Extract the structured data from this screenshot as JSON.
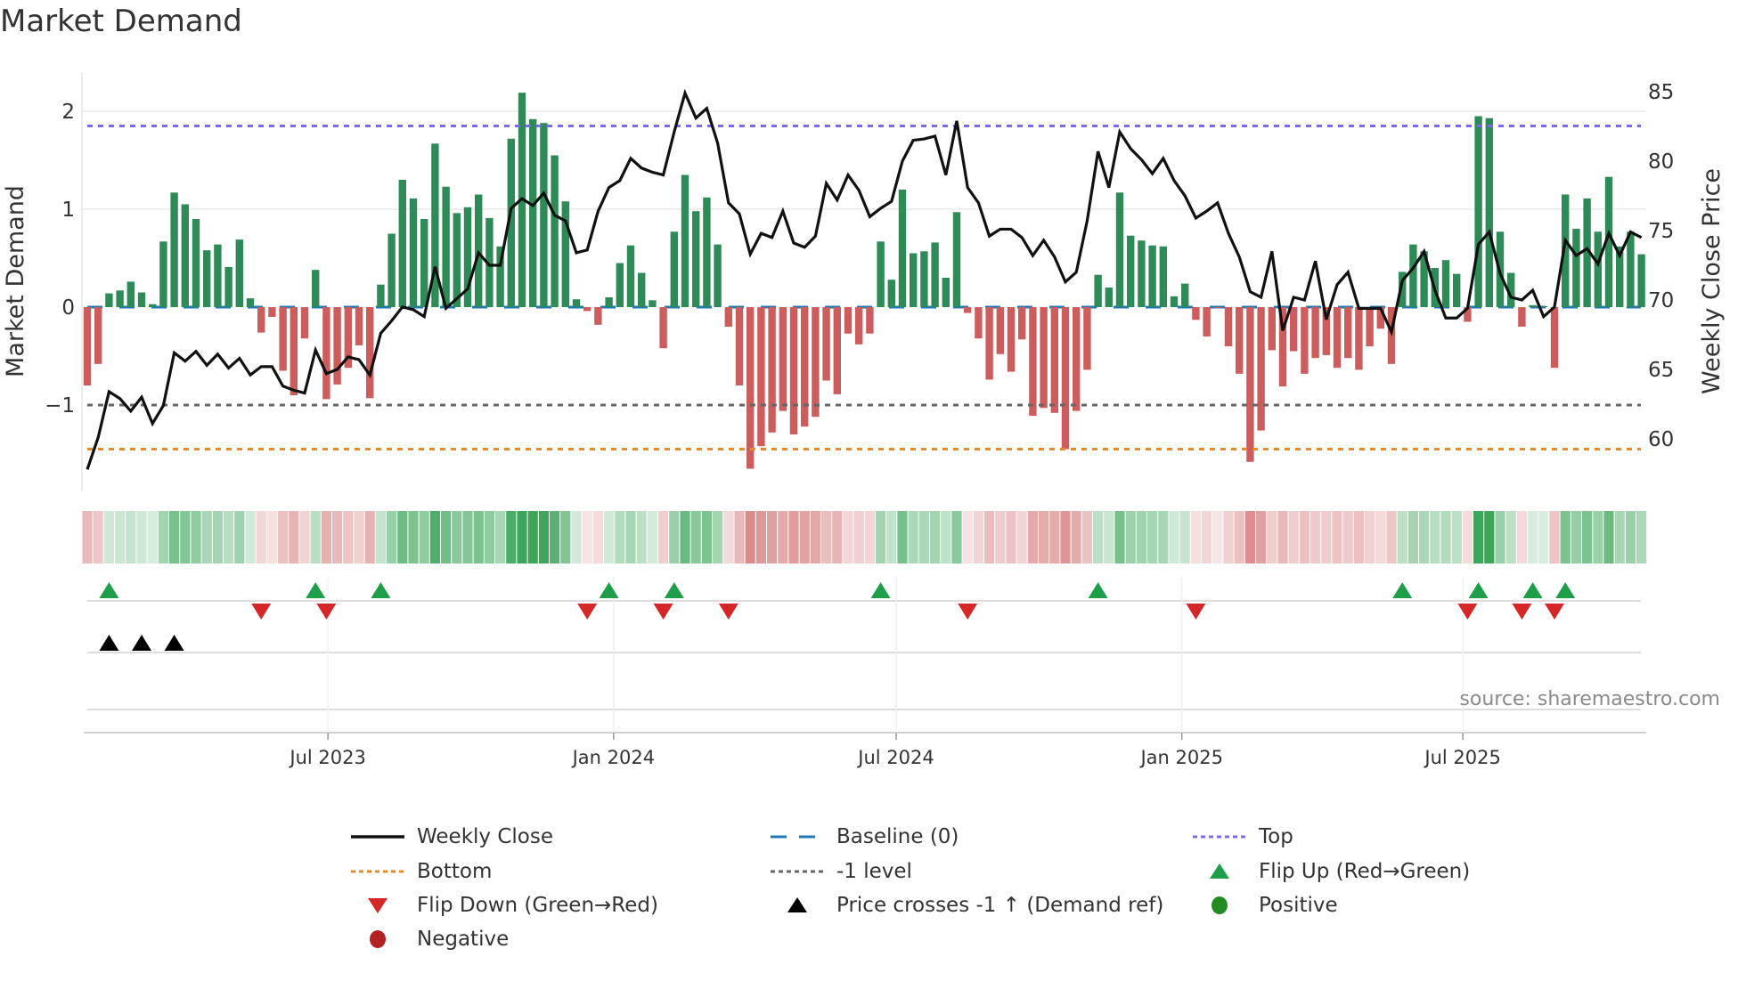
{
  "title": "Market Demand",
  "source": "source: sharemaestro.com",
  "chart_data": {
    "type": "bar",
    "title": "Market Demand",
    "ylabel": "Market Demand",
    "y2label": "Weekly Close Price",
    "ylim": [
      -1.75,
      2.4
    ],
    "y2lim": [
      56.8,
      86.3
    ],
    "yticks": [
      -1,
      0,
      1,
      2
    ],
    "y2ticks": [
      60,
      65,
      70,
      75,
      80,
      85
    ],
    "x_start": "2023-01-27",
    "x_frequency": "weekly",
    "xticks": [
      {
        "date": "2023-07-01",
        "label": "Jul 2023"
      },
      {
        "date": "2024-01-01",
        "label": "Jan 2024"
      },
      {
        "date": "2024-07-01",
        "label": "Jul 2024"
      },
      {
        "date": "2025-01-01",
        "label": "Jan 2025"
      },
      {
        "date": "2025-07-01",
        "label": "Jul 2025"
      }
    ],
    "levels": {
      "top": 1.85,
      "bottom": -1.45,
      "minus_one": -1,
      "baseline": 0
    },
    "demand": [
      -0.8,
      -0.58,
      0.14,
      0.17,
      0.26,
      0.15,
      0.03,
      0.67,
      1.17,
      1.05,
      0.9,
      0.58,
      0.64,
      0.41,
      0.69,
      0.09,
      -0.26,
      -0.1,
      -0.65,
      -0.9,
      -0.32,
      0.38,
      -0.94,
      -0.79,
      -0.62,
      -0.39,
      -0.93,
      0.23,
      0.75,
      1.3,
      1.11,
      0.9,
      1.67,
      1.23,
      0.96,
      1.02,
      1.15,
      0.91,
      0.62,
      1.72,
      2.19,
      1.92,
      1.88,
      1.55,
      1.08,
      0.08,
      -0.04,
      -0.18,
      0.1,
      0.45,
      0.63,
      0.35,
      0.07,
      -0.42,
      0.77,
      1.35,
      0.98,
      1.12,
      0.64,
      -0.2,
      -0.8,
      -1.65,
      -1.42,
      -1.28,
      -1.06,
      -1.3,
      -1.22,
      -1.12,
      -0.75,
      -0.89,
      -0.27,
      -0.38,
      -0.27,
      0.67,
      0.28,
      1.2,
      0.55,
      0.57,
      0.66,
      0.3,
      0.97,
      -0.06,
      -0.32,
      -0.74,
      -0.48,
      -0.66,
      -0.33,
      -1.11,
      -1.03,
      -1.08,
      -1.45,
      -1.06,
      -0.64,
      0.33,
      0.2,
      1.17,
      0.73,
      0.68,
      0.63,
      0.62,
      0.11,
      0.24,
      -0.13,
      -0.3,
      -0.01,
      -0.4,
      -0.68,
      -1.58,
      -1.26,
      -0.44,
      -0.81,
      -0.45,
      -0.68,
      -0.52,
      -0.49,
      -0.62,
      -0.52,
      -0.64,
      -0.4,
      -0.22,
      -0.58,
      0.36,
      0.64,
      0.57,
      0.4,
      0.48,
      0.34,
      -0.15,
      1.95,
      1.93,
      0.77,
      0.35,
      -0.2,
      0.02,
      0.01,
      -0.62,
      1.15,
      0.8,
      1.11,
      0.77,
      1.33,
      0.62,
      0.77,
      0.54
    ],
    "weekly_close": [
      57.8,
      60.1,
      63.4,
      62.9,
      62.0,
      63.0,
      61.1,
      62.4,
      66.2,
      65.6,
      66.3,
      65.3,
      66.1,
      65.1,
      65.8,
      64.6,
      65.2,
      65.2,
      63.8,
      63.5,
      63.3,
      66.4,
      64.7,
      65.0,
      65.9,
      65.7,
      64.6,
      67.6,
      68.5,
      69.5,
      69.3,
      68.8,
      72.4,
      69.4,
      70.1,
      70.8,
      73.4,
      72.5,
      72.5,
      76.6,
      77.3,
      76.8,
      77.7,
      76.1,
      75.7,
      73.4,
      73.6,
      76.4,
      78.1,
      78.6,
      80.2,
      79.5,
      79.2,
      79.0,
      82.1,
      84.9,
      83.1,
      83.8,
      81.3,
      77.0,
      76.2,
      73.3,
      74.8,
      74.5,
      76.4,
      74.1,
      73.8,
      74.6,
      78.4,
      77.2,
      79.0,
      77.9,
      76.0,
      76.6,
      77.1,
      80.0,
      81.5,
      81.6,
      81.8,
      79.0,
      82.9,
      78.1,
      77.0,
      74.6,
      75.1,
      75.1,
      74.5,
      73.2,
      74.3,
      73.1,
      71.3,
      72.0,
      75.7,
      80.7,
      78.1,
      82.1,
      80.9,
      80.1,
      79.1,
      80.2,
      78.6,
      77.5,
      75.9,
      76.4,
      77.0,
      74.8,
      73.1,
      70.6,
      70.2,
      73.5,
      67.8,
      70.2,
      70.0,
      72.8,
      68.6,
      71.1,
      72.0,
      69.4,
      69.4,
      69.4,
      67.7,
      71.4,
      72.3,
      73.5,
      70.7,
      68.7,
      68.7,
      69.4,
      74.0,
      74.9,
      71.9,
      70.2,
      70.0,
      70.7,
      68.8,
      69.5,
      74.3,
      73.2,
      73.7,
      72.6,
      74.8,
      73.2,
      74.9,
      74.5
    ],
    "flip_up_weeks": [
      2,
      21,
      27,
      48,
      54,
      73,
      93,
      121,
      128,
      133,
      136
    ],
    "flip_down_weeks": [
      16,
      22,
      46,
      53,
      59,
      81,
      102,
      127,
      132,
      135
    ],
    "price_cross_weeks": [
      2,
      5,
      8
    ],
    "legend_position": "bottom",
    "legend": [
      {
        "label": "Weekly Close",
        "kind": "line-solid",
        "color": "#111111"
      },
      {
        "label": "Baseline (0)",
        "kind": "line-dashed",
        "color": "#1f77b4"
      },
      {
        "label": "Top",
        "kind": "line-dotted",
        "color": "#7b68ee"
      },
      {
        "label": "Bottom",
        "kind": "line-dotted",
        "color": "#e8892a"
      },
      {
        "label": "-1 level",
        "kind": "line-dotted",
        "color": "#666666"
      },
      {
        "label": "Flip Up (Red→Green)",
        "kind": "tri-up",
        "color": "#1f9e4a"
      },
      {
        "label": "Flip Down (Green→Red)",
        "kind": "tri-down",
        "color": "#d62728"
      },
      {
        "label": "Price crosses -1 ↑ (Demand ref)",
        "kind": "tri-up",
        "color": "#000000"
      },
      {
        "label": "Positive",
        "kind": "dot",
        "color": "#228b22"
      },
      {
        "label": "Negative",
        "kind": "dot",
        "color": "#b22222"
      }
    ],
    "colors": {
      "positive_bar": "#2e8b57",
      "negative_bar": "#cd5c5c"
    }
  }
}
